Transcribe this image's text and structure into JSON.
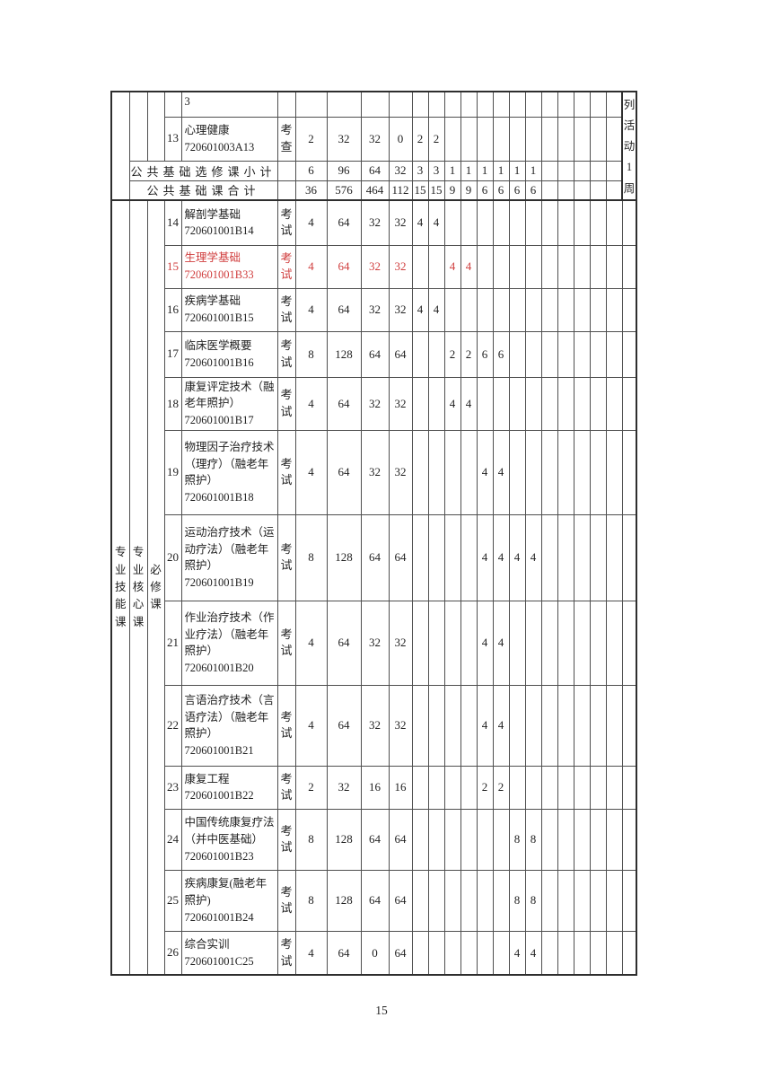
{
  "colors": {
    "highlight_red": "#d03e3e",
    "line": "#4f4f4f"
  },
  "footer": {
    "page_number": "15"
  },
  "table": {
    "activity_note": "列活动1周",
    "partial_row": {
      "name_fragment": "3"
    },
    "rows_top": [
      {
        "num": "13",
        "name": "心理健康",
        "code": "720601003A13",
        "exam": "考查",
        "credits": "2",
        "total": "32",
        "theory": "32",
        "practice": "0",
        "sem": [
          "2",
          "2",
          "",
          "",
          "",
          "",
          "",
          "",
          "",
          "",
          "",
          "",
          ""
        ]
      }
    ],
    "subtotal_row": {
      "label": "公共基础选修课小计",
      "credits": "6",
      "total": "96",
      "theory": "64",
      "practice": "32",
      "sem": [
        "3",
        "3",
        "1",
        "1",
        "1",
        "1",
        "1",
        "1",
        "",
        "",
        "",
        "",
        ""
      ]
    },
    "total_row": {
      "label": "公共基础课合计",
      "credits": "36",
      "total": "576",
      "theory": "464",
      "practice": "112",
      "sem": [
        "15",
        "15",
        "9",
        "9",
        "6",
        "6",
        "6",
        "6",
        "",
        "",
        "",
        "",
        ""
      ]
    },
    "categories": {
      "a": "专业技能课",
      "b": "专业核心课",
      "c": "必修课"
    },
    "rows_bottom": [
      {
        "num": "14",
        "name": "解剖学基础",
        "code": "720601001B14",
        "exam": "考试",
        "credits": "4",
        "total": "64",
        "theory": "32",
        "practice": "32",
        "sem": [
          "4",
          "4",
          "",
          "",
          "",
          "",
          "",
          "",
          "",
          "",
          "",
          "",
          ""
        ],
        "highlight": false
      },
      {
        "num": "15",
        "name": "生理学基础",
        "code": "720601001B33",
        "exam": "考试",
        "credits": "4",
        "total": "64",
        "theory": "32",
        "practice": "32",
        "sem": [
          "",
          "",
          "4",
          "4",
          "",
          "",
          "",
          "",
          "",
          "",
          "",
          "",
          ""
        ],
        "highlight": true
      },
      {
        "num": "16",
        "name": "疾病学基础",
        "code": "720601001B15",
        "exam": "考试",
        "credits": "4",
        "total": "64",
        "theory": "32",
        "practice": "32",
        "sem": [
          "4",
          "4",
          "",
          "",
          "",
          "",
          "",
          "",
          "",
          "",
          "",
          "",
          ""
        ],
        "highlight": false
      },
      {
        "num": "17",
        "name": "临床医学概要",
        "code": "720601001B16",
        "exam": "考试",
        "credits": "8",
        "total": "128",
        "theory": "64",
        "practice": "64",
        "sem": [
          "",
          "",
          "2",
          "2",
          "6",
          "6",
          "",
          "",
          "",
          "",
          "",
          "",
          ""
        ],
        "highlight": false
      },
      {
        "num": "18",
        "name": "康复评定技术（融老年照护）",
        "code": "720601001B17",
        "exam": "考试",
        "credits": "4",
        "total": "64",
        "theory": "32",
        "practice": "32",
        "sem": [
          "",
          "",
          "4",
          "4",
          "",
          "",
          "",
          "",
          "",
          "",
          "",
          "",
          ""
        ],
        "highlight": false
      },
      {
        "num": "19",
        "name": "物理因子治疗技术（理疗）（融老年照护）",
        "code": "720601001B18",
        "exam": "考试",
        "credits": "4",
        "total": "64",
        "theory": "32",
        "practice": "32",
        "sem": [
          "",
          "",
          "",
          "",
          "4",
          "4",
          "",
          "",
          "",
          "",
          "",
          "",
          ""
        ],
        "highlight": false
      },
      {
        "num": "20",
        "name": "运动治疗技术（运动疗法）（融老年照护）",
        "code": "720601001B19",
        "exam": "考试",
        "credits": "8",
        "total": "128",
        "theory": "64",
        "practice": "64",
        "sem": [
          "",
          "",
          "",
          "",
          "4",
          "4",
          "4",
          "4",
          "",
          "",
          "",
          "",
          ""
        ],
        "highlight": false
      },
      {
        "num": "21",
        "name": "作业治疗技术（作业疗法）（融老年照护）",
        "code": "720601001B20",
        "exam": "考试",
        "credits": "4",
        "total": "64",
        "theory": "32",
        "practice": "32",
        "sem": [
          "",
          "",
          "",
          "",
          "4",
          "4",
          "",
          "",
          "",
          "",
          "",
          "",
          ""
        ],
        "highlight": false
      },
      {
        "num": "22",
        "name": "言语治疗技术（言语疗法）（融老年照护）",
        "code": "720601001B21",
        "exam": "考试",
        "credits": "4",
        "total": "64",
        "theory": "32",
        "practice": "32",
        "sem": [
          "",
          "",
          "",
          "",
          "4",
          "4",
          "",
          "",
          "",
          "",
          "",
          "",
          ""
        ],
        "highlight": false
      },
      {
        "num": "23",
        "name": "康复工程",
        "code": "720601001B22",
        "exam": "考试",
        "credits": "2",
        "total": "32",
        "theory": "16",
        "practice": "16",
        "sem": [
          "",
          "",
          "",
          "",
          "2",
          "2",
          "",
          "",
          "",
          "",
          "",
          "",
          ""
        ],
        "highlight": false
      },
      {
        "num": "24",
        "name": "中国传统康复疗法（并中医基础）",
        "code": "720601001B23",
        "exam": "考试",
        "credits": "8",
        "total": "128",
        "theory": "64",
        "practice": "64",
        "sem": [
          "",
          "",
          "",
          "",
          "",
          "",
          "8",
          "8",
          "",
          "",
          "",
          "",
          ""
        ],
        "highlight": false
      },
      {
        "num": "25",
        "name": "疾病康复(融老年照护)",
        "code": "720601001B24",
        "exam": "考试",
        "credits": "8",
        "total": "128",
        "theory": "64",
        "practice": "64",
        "sem": [
          "",
          "",
          "",
          "",
          "",
          "",
          "8",
          "8",
          "",
          "",
          "",
          "",
          ""
        ],
        "highlight": false
      },
      {
        "num": "26",
        "name": "综合实训",
        "code": "720601001C25",
        "exam": "考试",
        "credits": "4",
        "total": "64",
        "theory": "0",
        "practice": "64",
        "sem": [
          "",
          "",
          "",
          "",
          "",
          "",
          "4",
          "4",
          "",
          "",
          "",
          "",
          ""
        ],
        "highlight": false
      }
    ]
  }
}
